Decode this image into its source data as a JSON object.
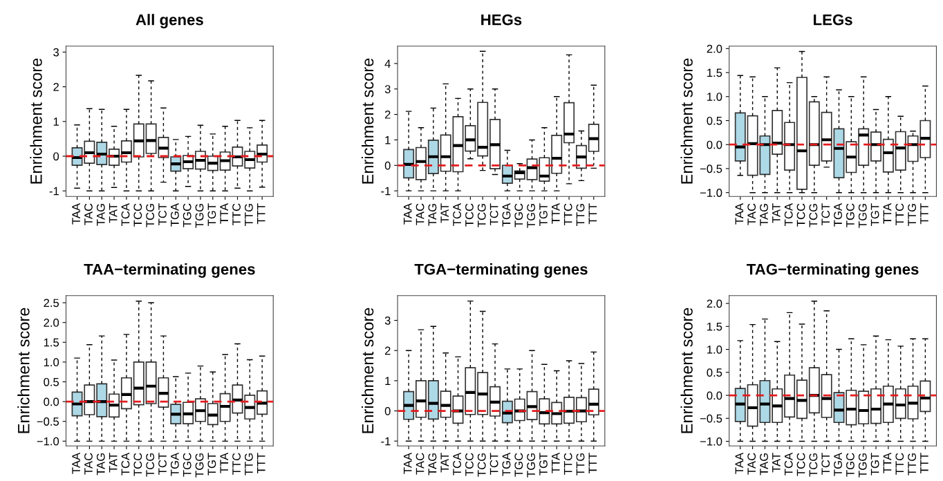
{
  "chart_data": [
    {
      "type": "box",
      "title": "All genes",
      "ylabel": "Enrichment score",
      "categories": [
        "TAA",
        "TAC",
        "TAG",
        "TAT",
        "TCA",
        "TCC",
        "TCG",
        "TCT",
        "TGA",
        "TGC",
        "TGG",
        "TGT",
        "TTA",
        "TTC",
        "TTG",
        "TTT"
      ],
      "ylim": [
        -1.16,
        3.17
      ],
      "yticks": [
        -1,
        0,
        1,
        2,
        3
      ],
      "grid": false,
      "legend": false,
      "ref_lines": [
        {
          "axis": "y",
          "value": 0,
          "color": "#e41a1c",
          "line_style": "dashed"
        }
      ],
      "colors": [
        "#add8e6",
        "#ffffff",
        "#add8e6",
        "#ffffff",
        "#ffffff",
        "#ffffff",
        "#ffffff",
        "#ffffff",
        "#add8e6",
        "#ffffff",
        "#ffffff",
        "#ffffff",
        "#ffffff",
        "#ffffff",
        "#ffffff",
        "#ffffff"
      ],
      "boxes": [
        {
          "low": -0.92,
          "q1": -0.26,
          "median": -0.04,
          "q3": 0.24,
          "high": 0.9
        },
        {
          "low": -1,
          "q1": -0.2,
          "median": 0.1,
          "q3": 0.43,
          "high": 1.37
        },
        {
          "low": -1,
          "q1": -0.24,
          "median": 0.06,
          "q3": 0.4,
          "high": 1.35
        },
        {
          "low": -0.9,
          "q1": -0.26,
          "median": 0.0,
          "q3": 0.2,
          "high": 0.86
        },
        {
          "low": -1,
          "q1": -0.17,
          "median": 0.1,
          "q3": 0.44,
          "high": 1.35
        },
        {
          "low": -1,
          "q1": -0.02,
          "median": 0.44,
          "q3": 0.93,
          "high": 2.33
        },
        {
          "low": -1,
          "q1": 0.08,
          "median": 0.45,
          "q3": 0.93,
          "high": 2.17
        },
        {
          "low": -0.75,
          "q1": -0.04,
          "median": 0.23,
          "q3": 0.54,
          "high": 1.39
        },
        {
          "low": -1,
          "q1": -0.43,
          "median": -0.22,
          "q3": -0.02,
          "high": 0.48
        },
        {
          "low": -0.87,
          "q1": -0.36,
          "median": -0.16,
          "q3": 0.02,
          "high": 0.57
        },
        {
          "low": -1,
          "q1": -0.37,
          "median": -0.12,
          "q3": 0.14,
          "high": 0.89
        },
        {
          "low": -1,
          "q1": -0.41,
          "median": -0.2,
          "q3": 0.0,
          "high": 0.64
        },
        {
          "low": -1,
          "q1": -0.4,
          "median": -0.13,
          "q3": 0.12,
          "high": 0.86
        },
        {
          "low": -0.92,
          "q1": -0.28,
          "median": -0.02,
          "q3": 0.26,
          "high": 1.03
        },
        {
          "low": -1,
          "q1": -0.34,
          "median": -0.1,
          "q3": 0.14,
          "high": 0.82
        },
        {
          "low": -0.89,
          "q1": -0.17,
          "median": 0.06,
          "q3": 0.32,
          "high": 1.03
        }
      ]
    },
    {
      "type": "box",
      "title": "HEGs",
      "ylabel": "Enrichment score",
      "categories": [
        "TAA",
        "TAC",
        "TAG",
        "TAT",
        "TCA",
        "TCC",
        "TCG",
        "TCT",
        "TGA",
        "TGC",
        "TGG",
        "TGT",
        "TTA",
        "TTC",
        "TTG",
        "TTT"
      ],
      "ylim": [
        -1.22,
        4.68
      ],
      "yticks": [
        -1,
        0,
        1,
        2,
        3,
        4
      ],
      "grid": false,
      "legend": false,
      "ref_lines": [
        {
          "axis": "y",
          "value": 0,
          "color": "#e41a1c",
          "line_style": "dashed"
        }
      ],
      "colors": [
        "#add8e6",
        "#ffffff",
        "#add8e6",
        "#ffffff",
        "#ffffff",
        "#ffffff",
        "#ffffff",
        "#ffffff",
        "#add8e6",
        "#ffffff",
        "#ffffff",
        "#ffffff",
        "#ffffff",
        "#ffffff",
        "#ffffff",
        "#ffffff"
      ],
      "boxes": [
        {
          "low": -1,
          "q1": -0.49,
          "median": 0.04,
          "q3": 0.62,
          "high": 2.12
        },
        {
          "low": -1,
          "q1": -0.56,
          "median": 0.15,
          "q3": 0.7,
          "high": 1.48
        },
        {
          "low": -1,
          "q1": -0.32,
          "median": 0.34,
          "q3": 0.99,
          "high": 2.25
        },
        {
          "low": -1,
          "q1": -0.23,
          "median": 0.34,
          "q3": 1.19,
          "high": 3.2
        },
        {
          "low": -1,
          "q1": -0.25,
          "median": 0.78,
          "q3": 1.91,
          "high": 2.63
        },
        {
          "low": 0.26,
          "q1": 0.56,
          "median": 1.0,
          "q3": 1.56,
          "high": 3.0
        },
        {
          "low": -0.2,
          "q1": 0.37,
          "median": 0.71,
          "q3": 2.47,
          "high": 4.48
        },
        {
          "low": -0.36,
          "q1": -0.13,
          "median": 0.81,
          "q3": 1.8,
          "high": 3.0
        },
        {
          "low": -1,
          "q1": -0.7,
          "median": -0.42,
          "q3": 0.0,
          "high": 0.59
        },
        {
          "low": -1,
          "q1": -0.54,
          "median": -0.29,
          "q3": -0.22,
          "high": 0.07
        },
        {
          "low": -1,
          "q1": -0.56,
          "median": -0.09,
          "q3": 0.25,
          "high": 1.0
        },
        {
          "low": -1,
          "q1": -0.62,
          "median": -0.42,
          "q3": 0.3,
          "high": 1.48
        },
        {
          "low": -1,
          "q1": -0.31,
          "median": 0.28,
          "q3": 1.18,
          "high": 2.7
        },
        {
          "low": -0.72,
          "q1": 0.89,
          "median": 1.23,
          "q3": 2.46,
          "high": 4.34
        },
        {
          "low": -0.6,
          "q1": -0.11,
          "median": 0.33,
          "q3": 0.78,
          "high": 1.35
        },
        {
          "low": -0.11,
          "q1": 0.55,
          "median": 1.05,
          "q3": 1.61,
          "high": 3.15
        }
      ]
    },
    {
      "type": "box",
      "title": "LEGs",
      "ylabel": "Enrichment score",
      "categories": [
        "TAA",
        "TAC",
        "TAG",
        "TAT",
        "TCA",
        "TCC",
        "TCG",
        "TCT",
        "TGA",
        "TGC",
        "TGG",
        "TGT",
        "TTA",
        "TTC",
        "TTG",
        "TTT"
      ],
      "ylim": [
        -1.08,
        2.05
      ],
      "yticks": [
        {
          "value": -1,
          "label": "−1.0"
        },
        {
          "value": -0.5,
          "label": "−0.5"
        },
        {
          "value": 0,
          "label": "0.0"
        },
        0.5,
        {
          "value": 1,
          "label": "1.0"
        },
        1.5,
        {
          "value": 2,
          "label": "2.0"
        }
      ],
      "grid": false,
      "legend": false,
      "ref_lines": [
        {
          "axis": "y",
          "value": 0,
          "color": "#e41a1c",
          "line_style": "dashed"
        }
      ],
      "colors": [
        "#add8e6",
        "#ffffff",
        "#add8e6",
        "#ffffff",
        "#ffffff",
        "#ffffff",
        "#ffffff",
        "#ffffff",
        "#add8e6",
        "#ffffff",
        "#ffffff",
        "#ffffff",
        "#ffffff",
        "#ffffff",
        "#ffffff",
        "#ffffff"
      ],
      "boxes": [
        {
          "low": -0.64,
          "q1": -0.34,
          "median": -0.05,
          "q3": 0.66,
          "high": 1.44
        },
        {
          "low": -1,
          "q1": -0.64,
          "median": 0.02,
          "q3": 0.6,
          "high": 1.41
        },
        {
          "low": -1,
          "q1": -0.62,
          "median": 0.0,
          "q3": 0.18,
          "high": 1.0
        },
        {
          "low": -1,
          "q1": -0.2,
          "median": 0.03,
          "q3": 0.71,
          "high": 1.6
        },
        {
          "low": -1,
          "q1": -0.53,
          "median": 0.0,
          "q3": 0.46,
          "high": 1.29
        },
        {
          "low": -1,
          "q1": -0.93,
          "median": -0.13,
          "q3": 1.4,
          "high": 1.94
        },
        {
          "low": -1,
          "q1": -0.43,
          "median": 0.0,
          "q3": 0.89,
          "high": 1.0
        },
        {
          "low": -0.47,
          "q1": -0.34,
          "median": 0.1,
          "q3": 0.67,
          "high": 1.41
        },
        {
          "low": -1,
          "q1": -0.69,
          "median": -0.08,
          "q3": 0.33,
          "high": 1.14
        },
        {
          "low": -1,
          "q1": -0.58,
          "median": -0.26,
          "q3": 0.06,
          "high": 1.0
        },
        {
          "low": -1,
          "q1": -0.43,
          "median": 0.2,
          "q3": 0.33,
          "high": 1.41
        },
        {
          "low": -1,
          "q1": -0.34,
          "median": 0.0,
          "q3": 0.26,
          "high": 0.73
        },
        {
          "low": -1,
          "q1": -0.57,
          "median": -0.17,
          "q3": 0.11,
          "high": 1.0
        },
        {
          "low": -1,
          "q1": -0.53,
          "median": -0.07,
          "q3": 0.27,
          "high": 0.59
        },
        {
          "low": -1,
          "q1": -0.35,
          "median": 0.0,
          "q3": 0.18,
          "high": 0.28
        },
        {
          "low": -1,
          "q1": -0.27,
          "median": 0.13,
          "q3": 0.5,
          "high": 1.22
        }
      ]
    },
    {
      "type": "box",
      "title": "TAA−terminating genes",
      "ylabel": "Enrichment score",
      "categories": [
        "TAA",
        "TAC",
        "TAG",
        "TAT",
        "TCA",
        "TCC",
        "TCG",
        "TCT",
        "TGA",
        "TGC",
        "TGG",
        "TGT",
        "TTA",
        "TTC",
        "TTG",
        "TTT"
      ],
      "ylim": [
        -1.12,
        2.68
      ],
      "yticks": [
        {
          "value": -1,
          "label": "−1.0"
        },
        {
          "value": -0.5,
          "label": "−0.5"
        },
        {
          "value": 0,
          "label": "0.0"
        },
        0.5,
        {
          "value": 1,
          "label": "1.0"
        },
        1.5,
        {
          "value": 2,
          "label": "2.0"
        },
        2.5
      ],
      "grid": false,
      "legend": false,
      "ref_lines": [
        {
          "axis": "y",
          "value": 0,
          "color": "#e41a1c",
          "line_style": "dashed"
        }
      ],
      "colors": [
        "#add8e6",
        "#ffffff",
        "#add8e6",
        "#ffffff",
        "#ffffff",
        "#ffffff",
        "#ffffff",
        "#ffffff",
        "#add8e6",
        "#ffffff",
        "#ffffff",
        "#ffffff",
        "#ffffff",
        "#ffffff",
        "#ffffff",
        "#ffffff"
      ],
      "boxes": [
        {
          "low": -1,
          "q1": -0.36,
          "median": -0.06,
          "q3": 0.24,
          "high": 1.1
        },
        {
          "low": -1,
          "q1": -0.33,
          "median": 0.0,
          "q3": 0.42,
          "high": 1.44
        },
        {
          "low": -1,
          "q1": -0.38,
          "median": 0.0,
          "q3": 0.45,
          "high": 1.66
        },
        {
          "low": -1,
          "q1": -0.39,
          "median": -0.09,
          "q3": 0.19,
          "high": 1.05
        },
        {
          "low": -1,
          "q1": -0.18,
          "median": 0.18,
          "q3": 0.6,
          "high": 1.7
        },
        {
          "low": -1,
          "q1": -0.08,
          "median": 0.34,
          "q3": 1.0,
          "high": 2.54
        },
        {
          "low": -1,
          "q1": -0.05,
          "median": 0.39,
          "q3": 1.0,
          "high": 2.5
        },
        {
          "low": -1,
          "q1": -0.14,
          "median": 0.21,
          "q3": 0.6,
          "high": 1.66
        },
        {
          "low": -1,
          "q1": -0.56,
          "median": -0.32,
          "q3": -0.07,
          "high": 0.63
        },
        {
          "low": -1,
          "q1": -0.56,
          "median": -0.31,
          "q3": -0.02,
          "high": 0.72
        },
        {
          "low": -1,
          "q1": -0.5,
          "median": -0.23,
          "q3": 0.07,
          "high": 0.9
        },
        {
          "low": -1,
          "q1": -0.58,
          "median": -0.34,
          "q3": -0.05,
          "high": 0.75
        },
        {
          "low": -1,
          "q1": -0.5,
          "median": -0.12,
          "q3": 0.2,
          "high": 1.19
        },
        {
          "low": -1,
          "q1": -0.29,
          "median": 0.04,
          "q3": 0.42,
          "high": 1.46
        },
        {
          "low": -1,
          "q1": -0.44,
          "median": -0.15,
          "q3": 0.16,
          "high": 1.06
        },
        {
          "low": -1,
          "q1": -0.32,
          "median": -0.04,
          "q3": 0.27,
          "high": 1.15
        }
      ]
    },
    {
      "type": "box",
      "title": "TGA−terminating genes",
      "ylabel": "Enrichment score",
      "categories": [
        "TAA",
        "TAC",
        "TAG",
        "TAT",
        "TCA",
        "TCC",
        "TCG",
        "TCT",
        "TGA",
        "TGC",
        "TGG",
        "TGT",
        "TTA",
        "TTC",
        "TTG",
        "TTT"
      ],
      "ylim": [
        -1.16,
        3.82
      ],
      "yticks": [
        -1,
        0,
        1,
        2,
        3
      ],
      "grid": false,
      "legend": false,
      "ref_lines": [
        {
          "axis": "y",
          "value": 0,
          "color": "#e41a1c",
          "line_style": "dashed"
        }
      ],
      "colors": [
        "#add8e6",
        "#ffffff",
        "#add8e6",
        "#ffffff",
        "#ffffff",
        "#ffffff",
        "#ffffff",
        "#ffffff",
        "#add8e6",
        "#ffffff",
        "#ffffff",
        "#ffffff",
        "#ffffff",
        "#ffffff",
        "#ffffff",
        "#ffffff"
      ],
      "boxes": [
        {
          "low": -1,
          "q1": -0.28,
          "median": 0.18,
          "q3": 0.64,
          "high": 2.0
        },
        {
          "low": -1,
          "q1": -0.21,
          "median": 0.33,
          "q3": 1.0,
          "high": 2.69
        },
        {
          "low": -1,
          "q1": -0.27,
          "median": 0.25,
          "q3": 1.0,
          "high": 2.8
        },
        {
          "low": -1,
          "q1": -0.21,
          "median": 0.18,
          "q3": 0.65,
          "high": 1.92
        },
        {
          "low": -1,
          "q1": -0.41,
          "median": 0.0,
          "q3": 0.49,
          "high": 1.79
        },
        {
          "low": -1,
          "q1": -0.12,
          "median": 0.61,
          "q3": 1.43,
          "high": 3.64
        },
        {
          "low": -1,
          "q1": -0.12,
          "median": 0.56,
          "q3": 1.27,
          "high": 3.3
        },
        {
          "low": -1,
          "q1": -0.17,
          "median": 0.29,
          "q3": 0.8,
          "high": 2.22
        },
        {
          "low": -1,
          "q1": -0.39,
          "median": -0.07,
          "q3": 0.32,
          "high": 1.39
        },
        {
          "low": -1,
          "q1": -0.32,
          "median": 0.0,
          "q3": 0.39,
          "high": 1.39
        },
        {
          "low": -1,
          "q1": -0.29,
          "median": 0.14,
          "q3": 0.64,
          "high": 2.0
        },
        {
          "low": -1,
          "q1": -0.43,
          "median": -0.06,
          "q3": 0.4,
          "high": 1.54
        },
        {
          "low": -1,
          "q1": -0.43,
          "median": -0.09,
          "q3": 0.28,
          "high": 1.33
        },
        {
          "low": -1,
          "q1": -0.41,
          "median": -0.01,
          "q3": 0.45,
          "high": 1.66
        },
        {
          "low": -1,
          "q1": -0.36,
          "median": 0.0,
          "q3": 0.44,
          "high": 1.57
        },
        {
          "low": -1,
          "q1": -0.13,
          "median": 0.22,
          "q3": 0.72,
          "high": 1.95
        }
      ]
    },
    {
      "type": "box",
      "title": "TAG−terminating genes",
      "ylabel": "Enrichment score",
      "categories": [
        "TAA",
        "TAC",
        "TAG",
        "TAT",
        "TCA",
        "TCC",
        "TCG",
        "TCT",
        "TGA",
        "TGC",
        "TGG",
        "TGT",
        "TTA",
        "TTC",
        "TTG",
        "TTT"
      ],
      "ylim": [
        -1.1,
        2.17
      ],
      "yticks": [
        {
          "value": -1,
          "label": "−1.0"
        },
        {
          "value": -0.5,
          "label": "−0.5"
        },
        {
          "value": 0,
          "label": "0.0"
        },
        0.5,
        {
          "value": 1,
          "label": "1.0"
        },
        1.5,
        {
          "value": 2,
          "label": "2.0"
        }
      ],
      "grid": false,
      "legend": false,
      "ref_lines": [
        {
          "axis": "y",
          "value": 0,
          "color": "#e41a1c",
          "line_style": "dashed"
        }
      ],
      "colors": [
        "#add8e6",
        "#ffffff",
        "#add8e6",
        "#ffffff",
        "#ffffff",
        "#ffffff",
        "#ffffff",
        "#ffffff",
        "#add8e6",
        "#ffffff",
        "#ffffff",
        "#ffffff",
        "#ffffff",
        "#ffffff",
        "#ffffff",
        "#ffffff"
      ],
      "boxes": [
        {
          "low": -1,
          "q1": -0.57,
          "median": -0.19,
          "q3": 0.15,
          "high": 1.19
        },
        {
          "low": -1,
          "q1": -0.67,
          "median": -0.27,
          "q3": 0.23,
          "high": 1.54
        },
        {
          "low": -1,
          "q1": -0.59,
          "median": -0.19,
          "q3": 0.32,
          "high": 1.66
        },
        {
          "low": -1,
          "q1": -0.59,
          "median": -0.23,
          "q3": 0.14,
          "high": 1.17
        },
        {
          "low": -1,
          "q1": -0.47,
          "median": -0.07,
          "q3": 0.44,
          "high": 1.8
        },
        {
          "low": -1,
          "q1": -0.5,
          "median": -0.11,
          "q3": 0.33,
          "high": 1.55
        },
        {
          "low": -1,
          "q1": -0.38,
          "median": 0.0,
          "q3": 0.6,
          "high": 2.05
        },
        {
          "low": -1,
          "q1": -0.48,
          "median": -0.07,
          "q3": 0.45,
          "high": 1.84
        },
        {
          "low": -1,
          "q1": -0.59,
          "median": -0.32,
          "q3": 0.06,
          "high": 1.0
        },
        {
          "low": -1,
          "q1": -0.64,
          "median": -0.3,
          "q3": 0.11,
          "high": 1.23
        },
        {
          "low": -1,
          "q1": -0.62,
          "median": -0.33,
          "q3": 0.09,
          "high": 1.1
        },
        {
          "low": -1,
          "q1": -0.61,
          "median": -0.3,
          "q3": 0.14,
          "high": 1.29
        },
        {
          "low": -1,
          "q1": -0.59,
          "median": -0.19,
          "q3": 0.2,
          "high": 1.21
        },
        {
          "low": -1,
          "q1": -0.5,
          "median": -0.21,
          "q3": 0.14,
          "high": 1.07
        },
        {
          "low": -1,
          "q1": -0.51,
          "median": -0.17,
          "q3": 0.2,
          "high": 1.23
        },
        {
          "low": -1,
          "q1": -0.35,
          "median": -0.06,
          "q3": 0.31,
          "high": 1.23
        }
      ]
    }
  ]
}
